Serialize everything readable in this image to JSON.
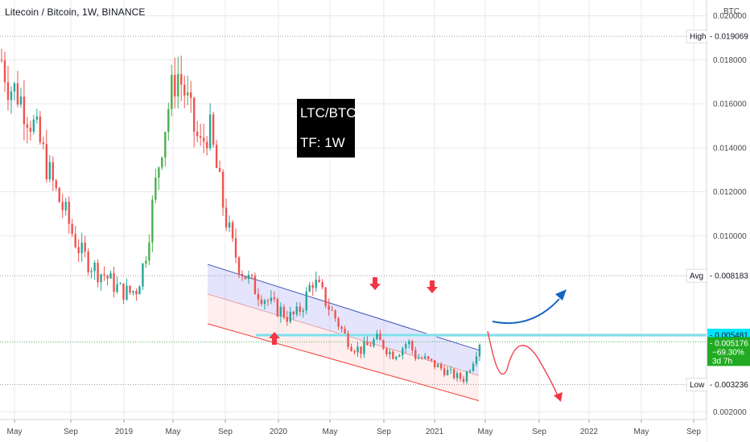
{
  "header": {
    "symbol_title": "Litecoin / Bitcoin, 1W, BINANCE"
  },
  "annotation": {
    "line1": "LTC/BTC",
    "line2": "TF: 1W"
  },
  "price_axis": {
    "currency": "BTC",
    "ticks": [
      "0.020000",
      "0.018000",
      "0.016000",
      "0.014000",
      "0.012000",
      "0.010000",
      "0.002000"
    ],
    "markers": [
      {
        "label": "High",
        "value": "0.019069",
        "bg": "#ffffff",
        "fg": "#131722"
      },
      {
        "label": "Avg",
        "value": "0.008183",
        "bg": "#ffffff",
        "fg": "#131722"
      },
      {
        "label": "",
        "value": "0.005481",
        "bg": "#00e5ff",
        "fg": "#131722"
      },
      {
        "label": "Low",
        "value": "0.003236",
        "bg": "#ffffff",
        "fg": "#131722"
      }
    ],
    "current": {
      "price": "0.005176",
      "change": "−69.30%",
      "countdown": "3d 7h",
      "bg": "#22ab22",
      "fg": "#ffffff"
    }
  },
  "time_axis": {
    "ticks": [
      "May",
      "Sep",
      "2019",
      "May",
      "Sep",
      "2020",
      "May",
      "Sep",
      "2021",
      "May",
      "Sep",
      "2022",
      "May",
      "Sep"
    ]
  },
  "chart_data": {
    "type": "candlestick",
    "title": "Litecoin / Bitcoin, 1W, BINANCE",
    "xlabel": "",
    "ylabel": "",
    "ylim": [
      0.0015,
      0.0205
    ],
    "x_ticks": [
      "May",
      "Sep",
      "2019",
      "May",
      "Sep",
      "2020",
      "May",
      "Sep",
      "2021",
      "May",
      "Sep",
      "2022",
      "May",
      "Sep"
    ],
    "y_ticks": [
      0.002,
      0.01,
      0.012,
      0.014,
      0.016,
      0.018,
      0.02
    ],
    "colors": {
      "up": "#26a69a",
      "up_bright": "#4caf50",
      "down": "#ef5350",
      "channel_top": "#3f51b5",
      "channel_bottom": "#f44336",
      "resistance": "#80deea",
      "grid": "#e9e9ea"
    },
    "reference_levels": {
      "high": 0.019069,
      "avg": 0.008183,
      "resistance": 0.005481,
      "current": 0.005176,
      "low": 0.003236
    },
    "close_path": [
      0.018,
      0.0168,
      0.0165,
      0.0158,
      0.015,
      0.014,
      0.0128,
      0.0118,
      0.011,
      0.01,
      0.0092,
      0.0088,
      0.0084,
      0.0082,
      0.0078,
      0.0075,
      0.0074,
      0.0076,
      0.009,
      0.0115,
      0.014,
      0.016,
      0.0175,
      0.0165,
      0.015,
      0.014,
      0.015,
      0.013,
      0.011,
      0.0095,
      0.0085,
      0.008,
      0.0075,
      0.0072,
      0.0068,
      0.0066,
      0.0063,
      0.0064,
      0.007,
      0.008,
      0.0075,
      0.0068,
      0.0062,
      0.0055,
      0.005,
      0.0048,
      0.005,
      0.0053,
      0.005,
      0.0046,
      0.0048,
      0.0052,
      0.0045,
      0.0044,
      0.0042,
      0.004,
      0.0038,
      0.0036,
      0.0035,
      0.0042,
      0.0052
    ],
    "channel": {
      "top": {
        "from": {
          "x": "Jul 2019",
          "y": 0.0087
        },
        "to": {
          "x": "Apr 2021",
          "y": 0.0048
        }
      },
      "bottom": {
        "from": {
          "x": "Jul 2019",
          "y": 0.006
        },
        "to": {
          "x": "Apr 2021",
          "y": 0.0025
        }
      }
    },
    "projection": {
      "bullish": "curve up above 0.005481",
      "bearish": "curve down toward 0.002000"
    }
  }
}
